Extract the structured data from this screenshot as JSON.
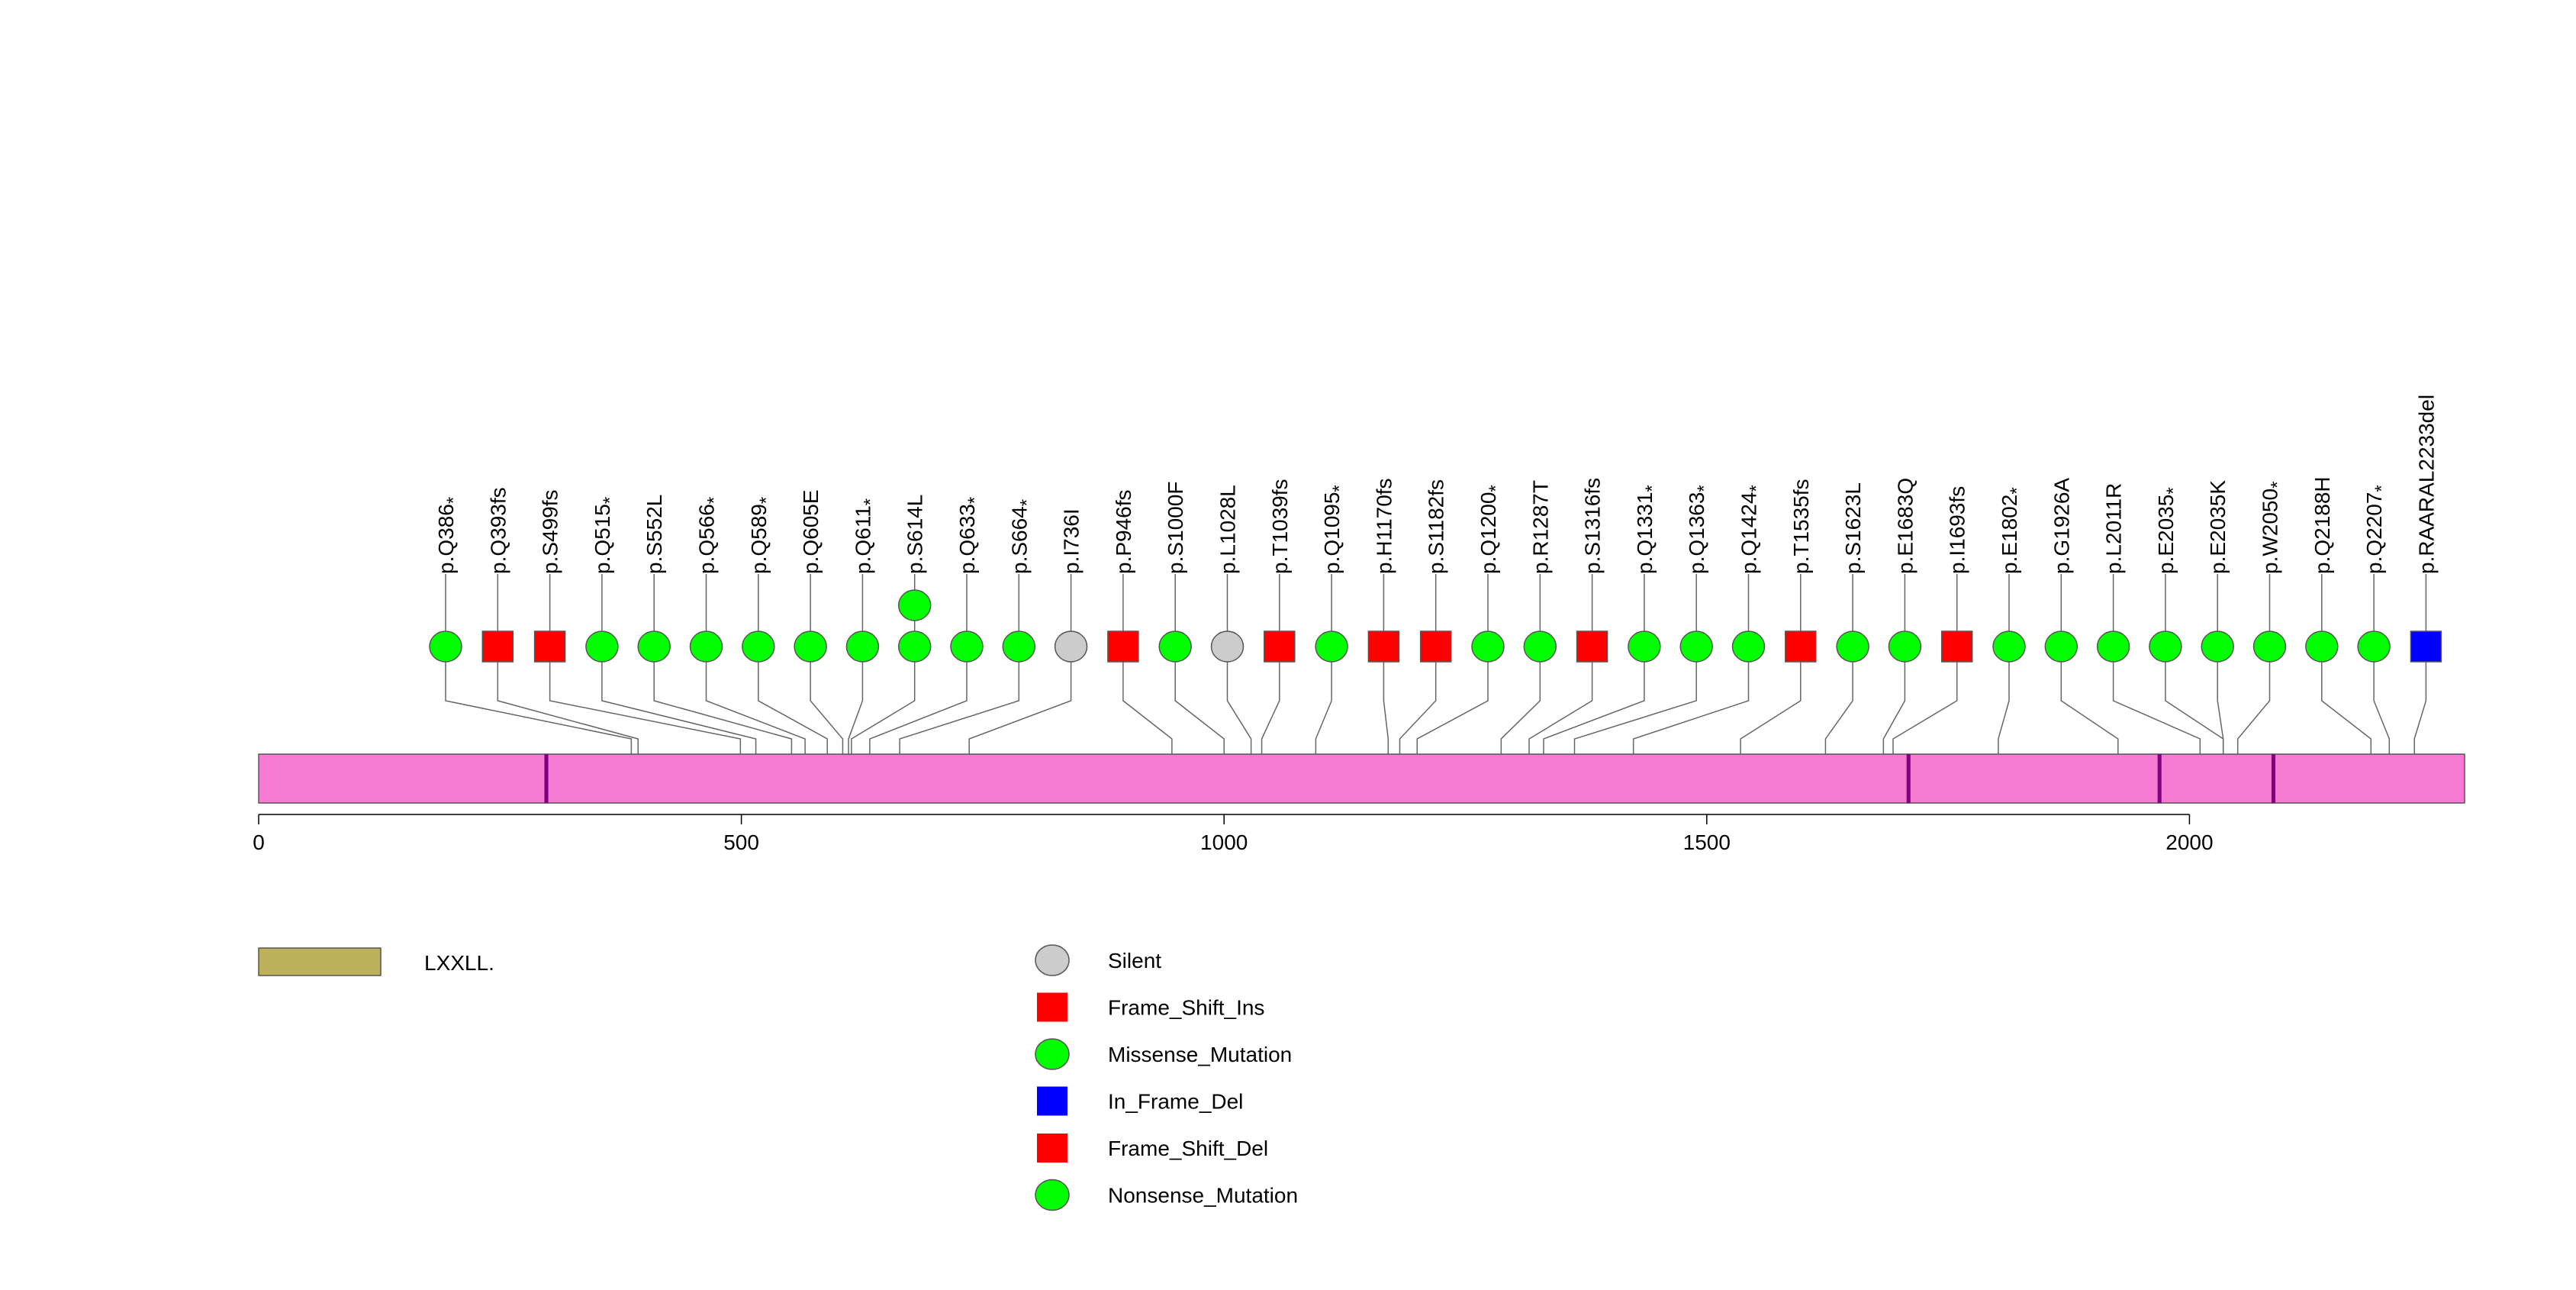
{
  "chart_data": {
    "type": "lollipop",
    "xlim": [
      0,
      2285
    ],
    "ticks": [
      0,
      500,
      1000,
      1500,
      2000
    ],
    "protein": {
      "length": 2285,
      "color": "#F77AD3"
    },
    "domains": [
      {
        "name": "LXXLL.",
        "start": 296,
        "end": 300,
        "color": "#800080"
      },
      {
        "name": "LXXLL.",
        "start": 1707,
        "end": 1711,
        "color": "#800080"
      },
      {
        "name": "LXXLL.",
        "start": 1967,
        "end": 1971,
        "color": "#800080"
      },
      {
        "name": "LXXLL.",
        "start": 2085,
        "end": 2089,
        "color": "#800080"
      }
    ],
    "domain_legend": [
      {
        "name": "LXXLL.",
        "color": "#BDB15B"
      }
    ],
    "legend": [
      {
        "label": "Silent",
        "shape": "circle",
        "color": "#CCCCCC"
      },
      {
        "label": "Frame_Shift_Ins",
        "shape": "square",
        "color": "#FF0000"
      },
      {
        "label": "Missense_Mutation",
        "shape": "circle",
        "color": "#00FF00"
      },
      {
        "label": "In_Frame_Del",
        "shape": "square",
        "color": "#0000FF"
      },
      {
        "label": "Frame_Shift_Del",
        "shape": "square",
        "color": "#FF0000"
      },
      {
        "label": "Nonsense_Mutation",
        "shape": "circle",
        "color": "#00FF00"
      }
    ],
    "mutations": [
      {
        "label": "p.Q386",
        "star": true,
        "position": 386,
        "type": "Nonsense_Mutation",
        "count": 1
      },
      {
        "label": "p.Q393fs",
        "star": false,
        "position": 393,
        "type": "Frame_Shift_Del",
        "count": 1
      },
      {
        "label": "p.S499fs",
        "star": false,
        "position": 499,
        "type": "Frame_Shift_Ins",
        "count": 1
      },
      {
        "label": "p.Q515",
        "star": true,
        "position": 515,
        "type": "Nonsense_Mutation",
        "count": 1
      },
      {
        "label": "p.S552L",
        "star": false,
        "position": 552,
        "type": "Missense_Mutation",
        "count": 1
      },
      {
        "label": "p.Q566",
        "star": true,
        "position": 566,
        "type": "Nonsense_Mutation",
        "count": 1
      },
      {
        "label": "p.Q589",
        "star": true,
        "position": 589,
        "type": "Nonsense_Mutation",
        "count": 1
      },
      {
        "label": "p.Q605E",
        "star": false,
        "position": 605,
        "type": "Missense_Mutation",
        "count": 1
      },
      {
        "label": "p.Q611",
        "star": true,
        "position": 611,
        "type": "Nonsense_Mutation",
        "count": 1
      },
      {
        "label": "p.S614L",
        "star": false,
        "position": 614,
        "type": "Missense_Mutation",
        "count": 2
      },
      {
        "label": "p.Q633",
        "star": true,
        "position": 633,
        "type": "Nonsense_Mutation",
        "count": 1
      },
      {
        "label": "p.S664",
        "star": true,
        "position": 664,
        "type": "Nonsense_Mutation",
        "count": 1
      },
      {
        "label": "p.I736I",
        "star": false,
        "position": 736,
        "type": "Silent",
        "count": 1
      },
      {
        "label": "p.P946fs",
        "star": false,
        "position": 946,
        "type": "Frame_Shift_Del",
        "count": 1
      },
      {
        "label": "p.S1000F",
        "star": false,
        "position": 1000,
        "type": "Missense_Mutation",
        "count": 1
      },
      {
        "label": "p.L1028L",
        "star": false,
        "position": 1028,
        "type": "Silent",
        "count": 1
      },
      {
        "label": "p.T1039fs",
        "star": false,
        "position": 1039,
        "type": "Frame_Shift_Del",
        "count": 1
      },
      {
        "label": "p.Q1095",
        "star": true,
        "position": 1095,
        "type": "Nonsense_Mutation",
        "count": 1
      },
      {
        "label": "p.H1170fs",
        "star": false,
        "position": 1170,
        "type": "Frame_Shift_Del",
        "count": 1
      },
      {
        "label": "p.S1182fs",
        "star": false,
        "position": 1182,
        "type": "Frame_Shift_Del",
        "count": 1
      },
      {
        "label": "p.Q1200",
        "star": true,
        "position": 1200,
        "type": "Nonsense_Mutation",
        "count": 1
      },
      {
        "label": "p.R1287T",
        "star": false,
        "position": 1287,
        "type": "Missense_Mutation",
        "count": 1
      },
      {
        "label": "p.S1316fs",
        "star": false,
        "position": 1316,
        "type": "Frame_Shift_Del",
        "count": 1
      },
      {
        "label": "p.Q1331",
        "star": true,
        "position": 1331,
        "type": "Nonsense_Mutation",
        "count": 1
      },
      {
        "label": "p.Q1363",
        "star": true,
        "position": 1363,
        "type": "Nonsense_Mutation",
        "count": 1
      },
      {
        "label": "p.Q1424",
        "star": true,
        "position": 1424,
        "type": "Nonsense_Mutation",
        "count": 1
      },
      {
        "label": "p.T1535fs",
        "star": false,
        "position": 1535,
        "type": "Frame_Shift_Del",
        "count": 1
      },
      {
        "label": "p.S1623L",
        "star": false,
        "position": 1623,
        "type": "Missense_Mutation",
        "count": 1
      },
      {
        "label": "p.E1683Q",
        "star": false,
        "position": 1683,
        "type": "Missense_Mutation",
        "count": 1
      },
      {
        "label": "p.I1693fs",
        "star": false,
        "position": 1693,
        "type": "Frame_Shift_Del",
        "count": 1
      },
      {
        "label": "p.E1802",
        "star": true,
        "position": 1802,
        "type": "Nonsense_Mutation",
        "count": 1
      },
      {
        "label": "p.G1926A",
        "star": false,
        "position": 1926,
        "type": "Missense_Mutation",
        "count": 1
      },
      {
        "label": "p.L2011R",
        "star": false,
        "position": 2011,
        "type": "Missense_Mutation",
        "count": 1
      },
      {
        "label": "p.E2035",
        "star": true,
        "position": 2035,
        "type": "Nonsense_Mutation",
        "count": 1
      },
      {
        "label": "p.E2035K",
        "star": false,
        "position": 2035,
        "type": "Missense_Mutation",
        "count": 1
      },
      {
        "label": "p.W2050",
        "star": true,
        "position": 2050,
        "type": "Nonsense_Mutation",
        "count": 1
      },
      {
        "label": "p.Q2188H",
        "star": false,
        "position": 2188,
        "type": "Missense_Mutation",
        "count": 1
      },
      {
        "label": "p.Q2207",
        "star": true,
        "position": 2207,
        "type": "Nonsense_Mutation",
        "count": 1
      },
      {
        "label": "p.RAARAL2233del",
        "star": false,
        "position": 2233,
        "type": "In_Frame_Del",
        "count": 1
      }
    ]
  }
}
